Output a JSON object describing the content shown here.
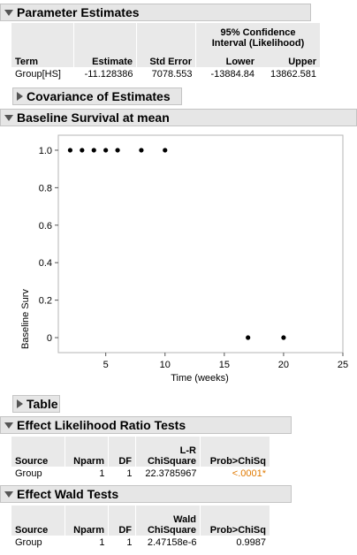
{
  "param": {
    "title": "Parameter Estimates",
    "ci_header": "95% Confidence Interval (Likelihood)",
    "ci_line1": "95% Confidence",
    "ci_line2": "Interval (Likelihood)",
    "cols": {
      "term": "Term",
      "estimate": "Estimate",
      "stderr": "Std Error",
      "lower": "Lower",
      "upper": "Upper"
    },
    "row": {
      "term": "Group[HS]",
      "estimate": "-11.128386",
      "stderr": "7078.553",
      "lower": "-13884.84",
      "upper": "13862.581"
    }
  },
  "cov": {
    "title": "Covariance of Estimates"
  },
  "baseline": {
    "title": "Baseline Survival at mean"
  },
  "chart_data": {
    "type": "scatter",
    "xlabel": "Time (weeks)",
    "ylabel": "Baseline Surv",
    "xlim": [
      1,
      25
    ],
    "ylim": [
      -0.08,
      1.08
    ],
    "xticks": [
      5,
      10,
      15,
      20,
      25
    ],
    "yticks": [
      0,
      0.2,
      0.4,
      0.6,
      0.8,
      1.0
    ],
    "ytick_labels": [
      "0",
      "0.2",
      "0.4",
      "0.6",
      "0.8",
      "1.0"
    ],
    "x": [
      2,
      3,
      4,
      5,
      6,
      8,
      10,
      17,
      20
    ],
    "y": [
      1,
      1,
      1,
      1,
      1,
      1,
      1,
      0,
      0
    ]
  },
  "table_section": {
    "title": "Table"
  },
  "lr": {
    "title": "Effect Likelihood Ratio Tests",
    "cols": {
      "source": "Source",
      "nparm": "Nparm",
      "df": "DF",
      "chisq_line1": "L-R",
      "chisq_line2": "ChiSquare",
      "prob": "Prob>ChiSq"
    },
    "row": {
      "source": "Group",
      "nparm": "1",
      "df": "1",
      "chisq": "22.3785967",
      "prob": "<.0001*"
    }
  },
  "wald": {
    "title": "Effect Wald Tests",
    "cols": {
      "source": "Source",
      "nparm": "Nparm",
      "df": "DF",
      "chisq_line1": "Wald",
      "chisq_line2": "ChiSquare",
      "prob": "Prob>ChiSq"
    },
    "row": {
      "source": "Group",
      "nparm": "1",
      "df": "1",
      "chisq": "2.47158e-6",
      "prob": "0.9987"
    }
  }
}
